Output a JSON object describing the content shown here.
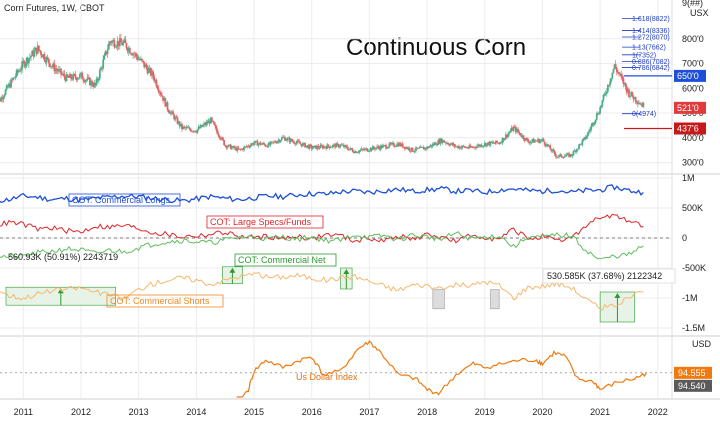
{
  "header": {
    "symbol": "Corn Futures, 1W, CBOT",
    "title": "Continuous Corn",
    "price_currency": "USX",
    "dxy_currency": "USD"
  },
  "x_axis": {
    "labels": [
      "2011",
      "2012",
      "2013",
      "2014",
      "2015",
      "2016",
      "2017",
      "2018",
      "2019",
      "2020",
      "2021",
      "2022"
    ]
  },
  "price_panel": {
    "tick_labels": [
      "800'0",
      "700'0",
      "600'0",
      "500'0",
      "400'0",
      "300'0"
    ],
    "fib_levels": [
      {
        "label": "1.618(8822)",
        "value": 882.2
      },
      {
        "label": "1.414(8336)",
        "value": 833.6
      },
      {
        "label": "1.272(8070)",
        "value": 807.0
      },
      {
        "label": "1.13(7662)",
        "value": 766.2
      },
      {
        "label": "1(7352)",
        "value": 735.2
      },
      {
        "label": "0.886(7082)",
        "value": 708.2
      },
      {
        "label": "0.786(6842)",
        "value": 684.2
      },
      {
        "label": "0(4974)",
        "value": 497.4
      }
    ],
    "price_tags": [
      {
        "label": "650'0",
        "value": 650.0,
        "color": "#1e4fd8"
      },
      {
        "label": "521'0",
        "value": 521.0,
        "color": "#e03a3a"
      },
      {
        "label": "437'6",
        "value": 437.6,
        "color": "#c41a1a"
      }
    ],
    "top_label": "9(##)"
  },
  "cot_panel": {
    "tick_labels": [
      "1M",
      "500K",
      "0",
      "-500K",
      "-1M",
      "-1.5M"
    ],
    "series_labels": {
      "commercial_longs": "COT: Commercial Longs",
      "large_specs": "COT: Large Specs/Funds",
      "commercial_net": "COT: Commercial Net",
      "commercial_shorts": "COT: Commercial Shorts"
    },
    "annotations": {
      "left": "560.93K (50.91%) 2243719",
      "right": "530.585K (37.68%) 2122342"
    }
  },
  "dxy_panel": {
    "label": "Us Dollar Index",
    "tag_current": "94.555",
    "tag_prev": "94.540"
  },
  "colors": {
    "up": "#4caf8a",
    "down": "#e06464",
    "longs": "#1e4fd8",
    "large_specs": "#e0262a",
    "net": "#5fbf5f",
    "shorts": "#f5b870",
    "dxy": "#f07a10",
    "grid": "#ececec"
  },
  "chart_data": [
    {
      "type": "candlestick",
      "title": "Continuous Corn",
      "xlabel": "",
      "ylabel": "USX",
      "ylim": [
        270,
        900
      ],
      "x": [
        2010.5,
        2010.75,
        2011.0,
        2011.25,
        2011.5,
        2011.75,
        2012.0,
        2012.25,
        2012.5,
        2012.75,
        2013.0,
        2013.25,
        2013.5,
        2013.75,
        2014.0,
        2014.25,
        2014.5,
        2014.75,
        2015.0,
        2015.25,
        2015.5,
        2015.75,
        2016.0,
        2016.25,
        2016.5,
        2016.75,
        2017.0,
        2017.25,
        2017.5,
        2017.75,
        2018.0,
        2018.25,
        2018.5,
        2018.75,
        2019.0,
        2019.25,
        2019.5,
        2019.75,
        2020.0,
        2020.25,
        2020.5,
        2020.75,
        2021.0,
        2021.25,
        2021.5,
        2021.75
      ],
      "values": [
        520,
        610,
        700,
        760,
        690,
        640,
        650,
        610,
        790,
        780,
        720,
        650,
        520,
        440,
        430,
        470,
        370,
        350,
        380,
        370,
        400,
        380,
        360,
        365,
        370,
        345,
        355,
        365,
        375,
        350,
        360,
        390,
        365,
        360,
        375,
        380,
        440,
        385,
        390,
        325,
        330,
        400,
        520,
        690,
        580,
        530
      ]
    },
    {
      "type": "line",
      "title": "",
      "ylabel": "",
      "ylim": [
        -1600000,
        1000000
      ],
      "x": [
        2010.5,
        2010.75,
        2011.0,
        2011.25,
        2011.5,
        2011.75,
        2012.0,
        2012.25,
        2012.5,
        2012.75,
        2013.0,
        2013.25,
        2013.5,
        2013.75,
        2014.0,
        2014.25,
        2014.5,
        2014.75,
        2015.0,
        2015.25,
        2015.5,
        2015.75,
        2016.0,
        2016.25,
        2016.5,
        2016.75,
        2017.0,
        2017.25,
        2017.5,
        2017.75,
        2018.0,
        2018.25,
        2018.5,
        2018.75,
        2019.0,
        2019.25,
        2019.5,
        2019.75,
        2020.0,
        2020.25,
        2020.5,
        2020.75,
        2021.0,
        2021.25,
        2021.5,
        2021.75
      ],
      "series": [
        {
          "name": "COT: Commercial Longs",
          "values": [
            620000,
            640000,
            700000,
            680000,
            640000,
            660000,
            630000,
            660000,
            680000,
            700000,
            690000,
            660000,
            640000,
            620000,
            650000,
            690000,
            660000,
            640000,
            670000,
            700000,
            690000,
            720000,
            740000,
            730000,
            770000,
            780000,
            760000,
            790000,
            810000,
            780000,
            800000,
            820000,
            780000,
            790000,
            760000,
            800000,
            820000,
            790000,
            780000,
            800000,
            760000,
            790000,
            800000,
            850000,
            790000,
            760000
          ]
        },
        {
          "name": "COT: Large Specs/Funds",
          "values": [
            200000,
            260000,
            230000,
            150000,
            170000,
            120000,
            100000,
            200000,
            180000,
            210000,
            160000,
            90000,
            60000,
            20000,
            40000,
            60000,
            100000,
            20000,
            10000,
            30000,
            -20000,
            40000,
            -20000,
            60000,
            40000,
            -50000,
            0,
            -50000,
            30000,
            -20000,
            50000,
            20000,
            -60000,
            40000,
            20000,
            -30000,
            150000,
            -10000,
            20000,
            -60000,
            0,
            200000,
            350000,
            360000,
            300000,
            190000
          ]
        },
        {
          "name": "COT: Commercial Net",
          "values": [
            -280000,
            -320000,
            -300000,
            -250000,
            -220000,
            -180000,
            -200000,
            -260000,
            -200000,
            -230000,
            -160000,
            -100000,
            -60000,
            -40000,
            -60000,
            -80000,
            -30000,
            10000,
            20000,
            -10000,
            20000,
            -20000,
            20000,
            -40000,
            -40000,
            60000,
            10000,
            40000,
            -30000,
            50000,
            20000,
            -20000,
            80000,
            -10000,
            10000,
            40000,
            -150000,
            20000,
            10000,
            50000,
            40000,
            -200000,
            -370000,
            -300000,
            -280000,
            -130000
          ]
        },
        {
          "name": "COT: Commercial Shorts",
          "values": [
            -820000,
            -960000,
            -1000000,
            -930000,
            -880000,
            -850000,
            -830000,
            -900000,
            -950000,
            -1010000,
            -850000,
            -760000,
            -700000,
            -660000,
            -700000,
            -770000,
            -700000,
            -640000,
            -600000,
            -650000,
            -650000,
            -620000,
            -670000,
            -700000,
            -660000,
            -640000,
            -720000,
            -800000,
            -870000,
            -780000,
            -790000,
            -870000,
            -770000,
            -800000,
            -720000,
            -790000,
            -1000000,
            -820000,
            -800000,
            -760000,
            -820000,
            -1020000,
            -1170000,
            -1120000,
            -1000000,
            -900000
          ]
        }
      ]
    },
    {
      "type": "line",
      "title": "",
      "ylim": [
        88,
        104
      ],
      "x": [
        2014.7,
        2014.9,
        2015.0,
        2015.2,
        2015.5,
        2015.8,
        2016.0,
        2016.2,
        2016.5,
        2016.8,
        2017.0,
        2017.2,
        2017.5,
        2017.8,
        2018.0,
        2018.2,
        2018.5,
        2018.8,
        2019.0,
        2019.3,
        2019.6,
        2019.9,
        2020.0,
        2020.2,
        2020.4,
        2020.6,
        2020.9,
        2021.0,
        2021.3,
        2021.6,
        2021.8
      ],
      "series": [
        {
          "name": "Us Dollar Index",
          "values": [
            86,
            90,
            95,
            98,
            96,
            98,
            99,
            94,
            95,
            101,
            103,
            100,
            94,
            93,
            90,
            89,
            94,
            97,
            96,
            97,
            98,
            98,
            97,
            100,
            99,
            93,
            92,
            90,
            92,
            93,
            94.5
          ]
        }
      ]
    }
  ]
}
